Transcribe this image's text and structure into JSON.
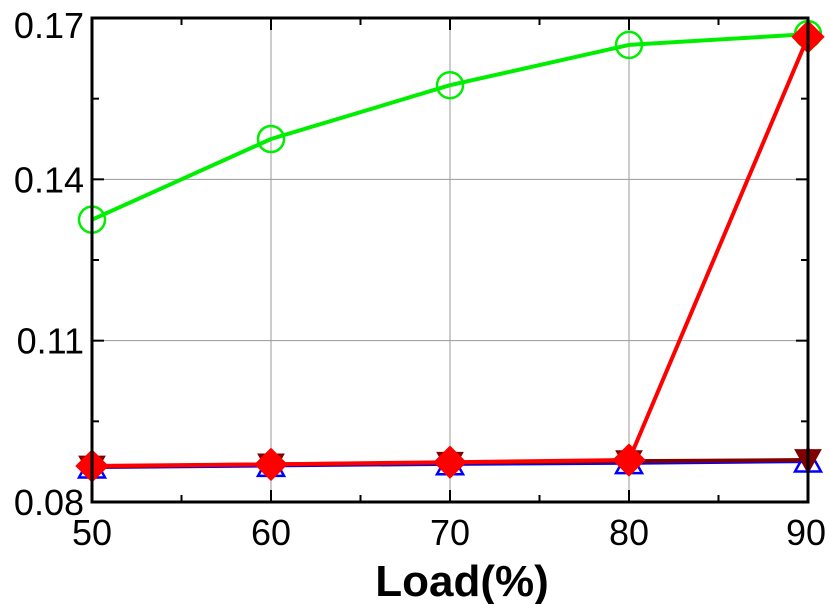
{
  "chart_data": {
    "type": "line",
    "title": "",
    "xlabel": "Load(%)",
    "ylabel": "",
    "x": [
      50,
      60,
      70,
      80,
      90
    ],
    "xlim": [
      50,
      90
    ],
    "ylim": [
      0.08,
      0.17
    ],
    "x_ticks": [
      "50",
      "60",
      "70",
      "80",
      "90"
    ],
    "y_ticks": [
      "0.08",
      "0.11",
      "0.14",
      "0.17"
    ],
    "y_tick_values": [
      0.08,
      0.11,
      0.14,
      0.17
    ],
    "grid": true,
    "series": [
      {
        "color": "#00ee00",
        "marker": "circle-open",
        "values": [
          0.1325,
          0.1475,
          0.1575,
          0.165,
          0.167
        ]
      },
      {
        "color": "#0000ff",
        "marker": "triangle-up-open",
        "values": [
          0.0865,
          0.0868,
          0.0871,
          0.0873,
          0.0876
        ]
      },
      {
        "color": "#800000",
        "marker": "triangle-down",
        "values": [
          0.0866,
          0.087,
          0.0873,
          0.0876,
          0.0878
        ]
      },
      {
        "color": "#ff0000",
        "marker": "diamond",
        "values": [
          0.0867,
          0.087,
          0.0874,
          0.0878,
          0.1665
        ]
      }
    ]
  }
}
